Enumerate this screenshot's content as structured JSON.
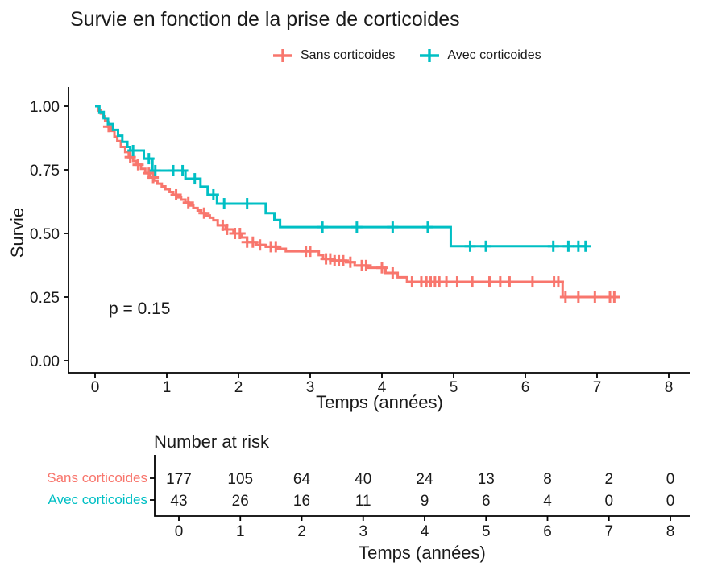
{
  "title": "Survie en fonction de la prise de corticoides",
  "legend": {
    "items": [
      {
        "label": "Sans corticoides",
        "color": "#F8766D"
      },
      {
        "label": "Avec corticoides",
        "color": "#00BFC4"
      }
    ]
  },
  "annotation": {
    "p_value": "p = 0.15"
  },
  "chart_data": {
    "type": "line",
    "subtype": "kaplan-meier-step",
    "title": "Survie en fonction de la prise de corticoides",
    "xlabel": "Temps (années)",
    "ylabel": "Survie",
    "xlim": [
      0,
      8
    ],
    "ylim": [
      0,
      1
    ],
    "grid": "off",
    "legend_position": "top",
    "x_ticks": [
      0,
      1,
      2,
      3,
      4,
      5,
      6,
      7,
      8
    ],
    "y_ticks": [
      {
        "v": 0.0,
        "label": "0.00"
      },
      {
        "v": 0.25,
        "label": "0.25"
      },
      {
        "v": 0.5,
        "label": "0.50"
      },
      {
        "v": 0.75,
        "label": "0.75"
      },
      {
        "v": 1.0,
        "label": "1.00"
      }
    ],
    "series": [
      {
        "name": "Sans corticoides",
        "color": "#F8766D",
        "steps": [
          [
            0,
            1.0
          ],
          [
            0.04,
            0.983
          ],
          [
            0.08,
            0.971
          ],
          [
            0.11,
            0.96
          ],
          [
            0.14,
            0.943
          ],
          [
            0.18,
            0.92
          ],
          [
            0.22,
            0.903
          ],
          [
            0.27,
            0.88
          ],
          [
            0.31,
            0.863
          ],
          [
            0.36,
            0.84
          ],
          [
            0.42,
            0.82
          ],
          [
            0.47,
            0.8
          ],
          [
            0.53,
            0.785
          ],
          [
            0.58,
            0.77
          ],
          [
            0.64,
            0.754
          ],
          [
            0.7,
            0.737
          ],
          [
            0.76,
            0.72
          ],
          [
            0.82,
            0.708
          ],
          [
            0.87,
            0.696
          ],
          [
            0.93,
            0.685
          ],
          [
            0.98,
            0.674
          ],
          [
            1.04,
            0.663
          ],
          [
            1.09,
            0.652
          ],
          [
            1.15,
            0.642
          ],
          [
            1.2,
            0.633
          ],
          [
            1.26,
            0.621
          ],
          [
            1.31,
            0.61
          ],
          [
            1.37,
            0.6
          ],
          [
            1.43,
            0.59
          ],
          [
            1.48,
            0.58
          ],
          [
            1.54,
            0.571
          ],
          [
            1.6,
            0.562
          ],
          [
            1.65,
            0.552
          ],
          [
            1.71,
            0.532
          ],
          [
            1.82,
            0.516
          ],
          [
            1.93,
            0.5
          ],
          [
            2.05,
            0.484
          ],
          [
            2.12,
            0.466
          ],
          [
            2.25,
            0.455
          ],
          [
            2.38,
            0.448
          ],
          [
            2.55,
            0.44
          ],
          [
            2.66,
            0.43
          ],
          [
            3.12,
            0.415
          ],
          [
            3.18,
            0.4
          ],
          [
            3.32,
            0.393
          ],
          [
            3.5,
            0.387
          ],
          [
            3.62,
            0.374
          ],
          [
            3.8,
            0.365
          ],
          [
            4.05,
            0.345
          ],
          [
            4.22,
            0.328
          ],
          [
            4.35,
            0.31
          ],
          [
            6.52,
            0.25
          ]
        ],
        "end": 7.25,
        "censor_times": [
          0.19,
          0.49,
          0.6,
          0.75,
          0.81,
          1.13,
          1.3,
          1.52,
          1.78,
          1.84,
          1.95,
          2.02,
          2.12,
          2.2,
          2.3,
          2.45,
          2.52,
          2.94,
          3.0,
          3.22,
          3.28,
          3.34,
          3.4,
          3.46,
          3.56,
          3.72,
          3.78,
          4.0,
          4.15,
          4.42,
          4.55,
          4.62,
          4.68,
          4.74,
          4.8,
          4.9,
          5.05,
          5.26,
          5.5,
          5.65,
          5.78,
          6.1,
          6.4,
          6.46,
          6.56,
          6.74,
          6.97,
          7.18,
          7.24
        ]
      },
      {
        "name": "Avec corticoides",
        "color": "#00BFC4",
        "steps": [
          [
            0,
            1.0
          ],
          [
            0.06,
            0.977
          ],
          [
            0.12,
            0.953
          ],
          [
            0.18,
            0.93
          ],
          [
            0.25,
            0.907
          ],
          [
            0.32,
            0.884
          ],
          [
            0.38,
            0.86
          ],
          [
            0.45,
            0.84
          ],
          [
            0.49,
            0.826
          ],
          [
            0.68,
            0.794
          ],
          [
            0.8,
            0.747
          ],
          [
            1.26,
            0.715
          ],
          [
            1.47,
            0.684
          ],
          [
            1.57,
            0.652
          ],
          [
            1.7,
            0.617
          ],
          [
            2.38,
            0.58
          ],
          [
            2.5,
            0.553
          ],
          [
            2.58,
            0.525
          ],
          [
            4.96,
            0.45
          ]
        ],
        "end": 6.86,
        "censor_times": [
          0.53,
          0.75,
          0.84,
          1.09,
          1.22,
          1.39,
          1.65,
          1.8,
          2.12,
          3.17,
          3.65,
          4.15,
          4.64,
          5.23,
          5.45,
          6.39,
          6.6,
          6.74,
          6.84
        ]
      }
    ],
    "risk_table": {
      "title": "Number at risk",
      "xlabel": "Temps (années)",
      "x": [
        0,
        1,
        2,
        3,
        4,
        5,
        6,
        7,
        8
      ],
      "rows": [
        {
          "label": "Sans corticoides",
          "color": "#F8766D",
          "values": [
            177,
            105,
            64,
            40,
            24,
            13,
            8,
            2,
            0
          ]
        },
        {
          "label": "Avec corticoides",
          "color": "#00BFC4",
          "values": [
            43,
            26,
            16,
            11,
            9,
            6,
            4,
            0,
            0
          ]
        }
      ]
    }
  }
}
